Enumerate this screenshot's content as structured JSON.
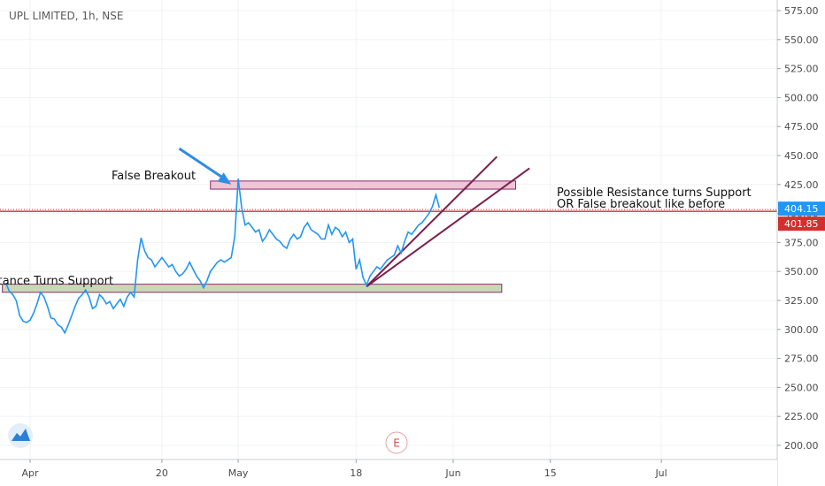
{
  "header": {
    "title": "UPL LIMITED, 1h, NSE"
  },
  "colors": {
    "price_line": "#2196f3",
    "resistance_line": "#d32f2f",
    "trendline": "#7b1f4e",
    "zone_upper_fill": "#f1c4d6",
    "zone_lower_fill": "#c8d8b6",
    "zone_border": "#8a2a6b",
    "arrow": "#2f8de4",
    "last_price_tag": "#2196f3",
    "level_tag": "#d32f2f"
  },
  "chart_data": {
    "type": "line",
    "title": "UPL LIMITED, 1h, NSE",
    "xlabel": "",
    "ylabel": "",
    "ylim": [
      191,
      586
    ],
    "y_ticks": [
      "575.00",
      "550.00",
      "525.00",
      "500.00",
      "475.00",
      "450.00",
      "425.00",
      "400.00",
      "375.00",
      "350.00",
      "325.00",
      "300.00",
      "275.00",
      "250.00",
      "225.00",
      "200.00"
    ],
    "x_ticks": [
      {
        "label": "Apr",
        "day": 1
      },
      {
        "label": "20",
        "day": 20
      },
      {
        "label": "May",
        "day": 31
      },
      {
        "label": "18",
        "day": 48
      },
      {
        "label": "Jun",
        "day": 62
      },
      {
        "label": "15",
        "day": 76
      },
      {
        "label": "Jul",
        "day": 92
      }
    ],
    "series": [
      {
        "values": [
          [
            -2.5,
            340
          ],
          [
            -2,
            333
          ],
          [
            -1.5,
            330
          ],
          [
            -1,
            325
          ],
          [
            -0.5,
            312
          ],
          [
            0,
            307
          ],
          [
            0.5,
            306
          ],
          [
            1,
            308
          ],
          [
            1.5,
            314
          ],
          [
            2,
            322
          ],
          [
            2.5,
            332
          ],
          [
            3,
            328
          ],
          [
            3.5,
            320
          ],
          [
            4,
            310
          ],
          [
            4.5,
            309
          ],
          [
            5,
            304
          ],
          [
            5.5,
            302
          ],
          [
            6,
            297
          ],
          [
            6.5,
            304
          ],
          [
            7,
            312
          ],
          [
            7.5,
            320
          ],
          [
            8,
            327
          ],
          [
            8.5,
            330
          ],
          [
            9,
            334
          ],
          [
            9.5,
            328
          ],
          [
            10,
            318
          ],
          [
            10.5,
            320
          ],
          [
            11,
            330
          ],
          [
            11.5,
            327
          ],
          [
            12,
            322
          ],
          [
            12.5,
            324
          ],
          [
            13,
            318
          ],
          [
            13.5,
            322
          ],
          [
            14,
            326
          ],
          [
            14.5,
            320
          ],
          [
            15,
            328
          ],
          [
            15.5,
            332
          ],
          [
            16,
            328
          ],
          [
            16.5,
            360
          ],
          [
            17,
            379
          ],
          [
            17.5,
            368
          ],
          [
            18,
            362
          ],
          [
            18.5,
            360
          ],
          [
            19,
            354
          ],
          [
            19.5,
            358
          ],
          [
            20,
            362
          ],
          [
            20.5,
            358
          ],
          [
            21,
            354
          ],
          [
            21.5,
            356
          ],
          [
            22,
            350
          ],
          [
            22.5,
            346
          ],
          [
            23,
            348
          ],
          [
            23.5,
            352
          ],
          [
            24,
            358
          ],
          [
            24.5,
            352
          ],
          [
            25,
            346
          ],
          [
            25.5,
            342
          ],
          [
            26,
            336
          ],
          [
            26.5,
            342
          ],
          [
            27,
            350
          ],
          [
            27.5,
            354
          ],
          [
            28,
            358
          ],
          [
            28.5,
            360
          ],
          [
            29,
            358
          ],
          [
            29.5,
            360
          ],
          [
            30,
            362
          ],
          [
            30.5,
            380
          ],
          [
            31,
            430
          ],
          [
            31.5,
            405
          ],
          [
            32,
            390
          ],
          [
            32.5,
            392
          ],
          [
            33,
            388
          ],
          [
            33.5,
            384
          ],
          [
            34,
            386
          ],
          [
            34.5,
            376
          ],
          [
            35,
            380
          ],
          [
            35.5,
            386
          ],
          [
            36,
            382
          ],
          [
            36.5,
            378
          ],
          [
            37,
            376
          ],
          [
            37.5,
            372
          ],
          [
            38,
            370
          ],
          [
            38.5,
            378
          ],
          [
            39,
            382
          ],
          [
            39.5,
            378
          ],
          [
            40,
            380
          ],
          [
            40.5,
            388
          ],
          [
            41,
            392
          ],
          [
            41.5,
            386
          ],
          [
            42,
            384
          ],
          [
            42.5,
            382
          ],
          [
            43,
            378
          ],
          [
            43.5,
            378
          ],
          [
            44,
            390
          ],
          [
            44.5,
            382
          ],
          [
            45,
            388
          ],
          [
            45.5,
            386
          ],
          [
            46,
            380
          ],
          [
            46.5,
            384
          ],
          [
            47,
            375
          ],
          [
            47.5,
            378
          ],
          [
            48,
            352
          ],
          [
            48.5,
            360
          ],
          [
            49,
            345
          ],
          [
            49.5,
            338
          ],
          [
            50,
            346
          ],
          [
            50.5,
            350
          ],
          [
            51,
            354
          ],
          [
            51.5,
            352
          ],
          [
            52,
            356
          ],
          [
            52.5,
            360
          ],
          [
            53,
            362
          ],
          [
            53.5,
            364
          ],
          [
            54,
            372
          ],
          [
            54.5,
            366
          ],
          [
            55,
            376
          ],
          [
            55.5,
            384
          ],
          [
            56,
            382
          ],
          [
            56.5,
            386
          ],
          [
            57,
            390
          ],
          [
            57.5,
            392
          ],
          [
            58,
            396
          ],
          [
            58.5,
            400
          ],
          [
            59,
            406
          ],
          [
            59.5,
            416
          ],
          [
            60,
            405
          ]
        ]
      }
    ],
    "annotations": {
      "false_breakout_label": "False Breakout",
      "resistance_support_label": "Resistance Turns Support",
      "possible_label_line1": "Possible Resistance turns Support",
      "possible_label_line2": "OR False breakout like before"
    },
    "zones": [
      {
        "name": "upper-zone",
        "x_start": 27,
        "x_end": 71,
        "y_low": 421,
        "y_high": 428
      },
      {
        "name": "lower-zone",
        "x_start": -3,
        "x_end": 69,
        "y_low": 332,
        "y_high": 339
      }
    ],
    "horizontal_line": {
      "y": 401.85
    },
    "trendlines": [
      {
        "x1": 49.5,
        "y1": 337,
        "x2": 68.3,
        "y2": 449
      },
      {
        "x1": 49.5,
        "y1": 337,
        "x2": 73,
        "y2": 439
      }
    ],
    "arrow": {
      "x1": 22.5,
      "y1": 456,
      "x2": 30,
      "y2": 425
    },
    "last_price": "404.15",
    "level_price": "401.85",
    "event_marker": "E",
    "grid": true
  }
}
